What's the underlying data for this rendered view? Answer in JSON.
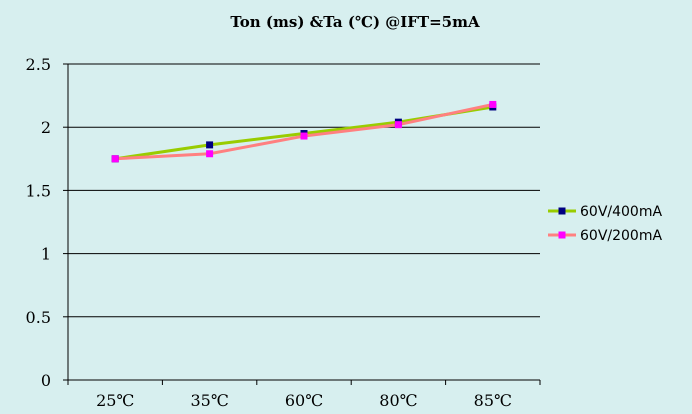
{
  "chart_data": {
    "type": "line",
    "title": "Ton (ms) &Ta (℃) @IFT=5mA",
    "categories": [
      "25℃",
      "35℃",
      "60℃",
      "80℃",
      "85℃"
    ],
    "ylim": [
      0,
      2.5
    ],
    "yticks": [
      "0",
      "0.5",
      "1",
      "1.5",
      "2",
      "2.5"
    ],
    "ytick_values": [
      0,
      0.5,
      1,
      1.5,
      2,
      2.5
    ],
    "grid": true,
    "legend_position": "right",
    "series": [
      {
        "name": "60V/400mA",
        "values": [
          1.75,
          1.86,
          1.95,
          2.04,
          2.16
        ],
        "line_color": "#99cc00",
        "marker_color": "#000080"
      },
      {
        "name": "60V/200mA",
        "values": [
          1.75,
          1.79,
          1.93,
          2.02,
          2.18
        ],
        "line_color": "#ff8080",
        "marker_color": "#ff00ff"
      }
    ]
  }
}
